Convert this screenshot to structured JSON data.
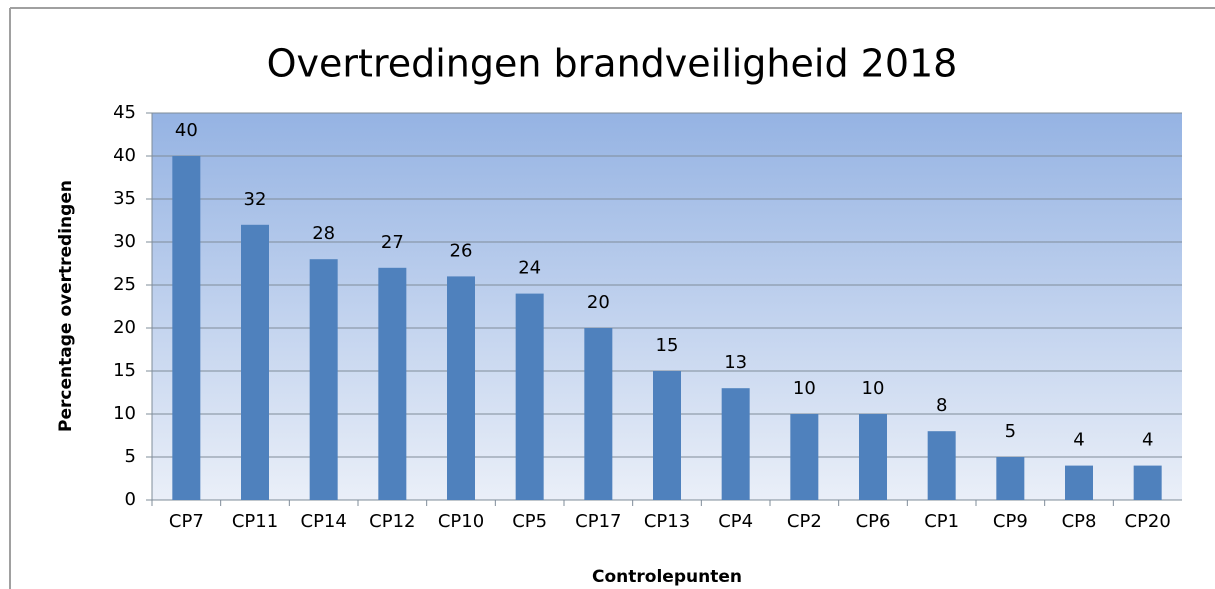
{
  "chart_data": {
    "type": "bar",
    "title": "Overtredingen brandveiligheid 2018",
    "x_label": "Controlepunten",
    "y_label": "Percentage overtredingen",
    "categories": [
      "CP7",
      "CP11",
      "CP14",
      "CP12",
      "CP10",
      "CP5",
      "CP17",
      "CP13",
      "CP4",
      "CP2",
      "CP6",
      "CP1",
      "CP9",
      "CP8",
      "CP20"
    ],
    "values": [
      40,
      32,
      28,
      27,
      26,
      24,
      20,
      15,
      13,
      10,
      10,
      8,
      5,
      4,
      4
    ],
    "color": "#4f81bd",
    "ylim": [
      0,
      45
    ],
    "yticks": [
      0,
      5,
      10,
      15,
      20,
      25,
      30,
      35,
      40,
      45
    ],
    "grid": true
  }
}
